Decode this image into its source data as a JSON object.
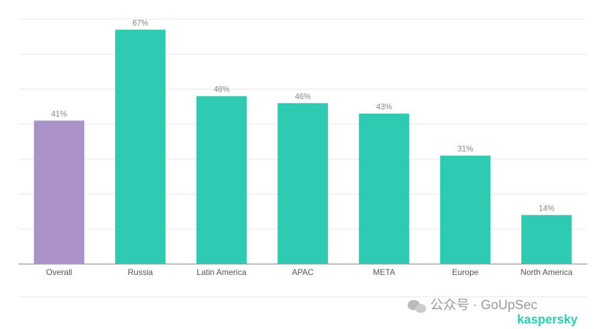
{
  "chart_data": {
    "type": "bar",
    "categories": [
      "Overall",
      "Russia",
      "Latin America",
      "APAC",
      "META",
      "Europe",
      "North America"
    ],
    "values": [
      41,
      67,
      48,
      46,
      43,
      31,
      14
    ],
    "value_labels": [
      "41%",
      "67%",
      "48%",
      "46%",
      "43%",
      "31%",
      "14%"
    ],
    "colors": [
      "#a993c8",
      "#2ccbb2",
      "#2ccbb2",
      "#2ccbb2",
      "#2ccbb2",
      "#2ccbb2",
      "#2ccbb2"
    ],
    "ylim": [
      0,
      70
    ],
    "yticks": [
      0,
      10,
      20,
      30,
      40,
      50,
      60,
      70
    ],
    "grid": true,
    "watermark": "公众号 · GoUpSec",
    "logo": "kaspersky"
  }
}
